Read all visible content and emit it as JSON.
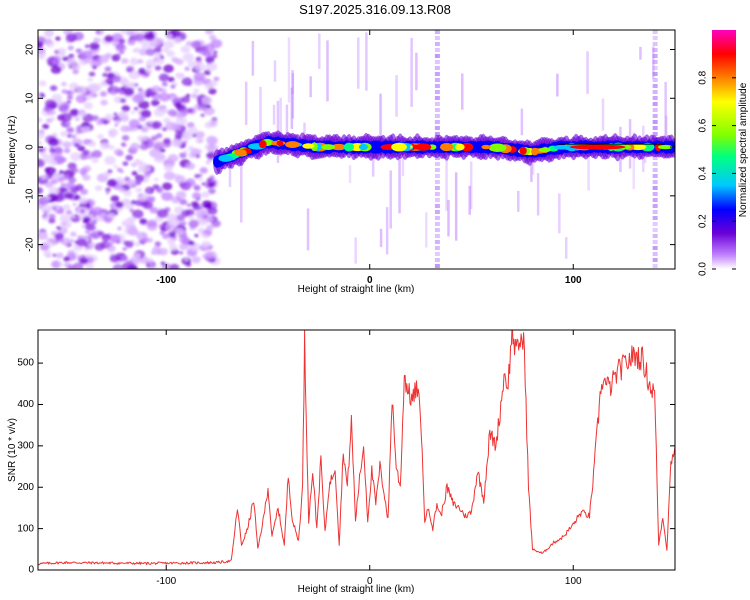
{
  "chart_data": [
    {
      "type": "heatmap",
      "title": "S197.2025.316.09.13.R08",
      "xlabel": "Height of straight line (km)",
      "ylabel": "Frequency (Hz)",
      "xlim": [
        -163,
        150
      ],
      "ylim": [
        -25,
        24
      ],
      "xticks": [
        -100,
        0,
        100
      ],
      "yticks": [
        -20,
        -10,
        0,
        10,
        20
      ],
      "noise_region_x": [
        -163,
        -75
      ],
      "signal_start_x": -75,
      "ridge_frequency_hz": [
        {
          "x": -75,
          "f": -3
        },
        {
          "x": -50,
          "f": 1
        },
        {
          "x": -25,
          "f": 0
        },
        {
          "x": 0,
          "f": 0
        },
        {
          "x": 60,
          "f": 0
        },
        {
          "x": 80,
          "f": -1
        },
        {
          "x": 95,
          "f": 0
        },
        {
          "x": 150,
          "f": 0
        }
      ],
      "colorbar": {
        "label": "Normalized spectral amplitude",
        "range": [
          0.0,
          1.0
        ],
        "ticks": [
          0.0,
          0.2,
          0.4,
          0.6,
          0.8
        ],
        "tick_labels": [
          "0.0",
          "0.2",
          "0.4",
          "0.6",
          "0.8"
        ],
        "colormap": [
          "#ffffff",
          "#c080ff",
          "#6a00d8",
          "#0000ff",
          "#00c8ff",
          "#00ff80",
          "#80ff00",
          "#ffff00",
          "#ff8000",
          "#ff0000",
          "#ff00c0"
        ]
      }
    },
    {
      "type": "line",
      "title": "",
      "xlabel": "Height of straight line (km)",
      "ylabel": "SNR (10 * v/v)",
      "xlim": [
        -163,
        150
      ],
      "ylim": [
        0,
        580
      ],
      "xticks": [
        -100,
        0,
        100
      ],
      "yticks": [
        0,
        100,
        200,
        300,
        400,
        500
      ],
      "line_color": "#ee3333",
      "series": [
        {
          "name": "SNR",
          "points": [
            [
              -163,
              15
            ],
            [
              -150,
              18
            ],
            [
              -130,
              17
            ],
            [
              -110,
              16
            ],
            [
              -90,
              17
            ],
            [
              -75,
              18
            ],
            [
              -68,
              22
            ],
            [
              -65,
              150
            ],
            [
              -63,
              60
            ],
            [
              -60,
              100
            ],
            [
              -57,
              170
            ],
            [
              -55,
              50
            ],
            [
              -52,
              130
            ],
            [
              -50,
              200
            ],
            [
              -48,
              80
            ],
            [
              -45,
              150
            ],
            [
              -42,
              60
            ],
            [
              -40,
              230
            ],
            [
              -38,
              120
            ],
            [
              -35,
              70
            ],
            [
              -33,
              200
            ],
            [
              -32,
              550
            ],
            [
              -30,
              120
            ],
            [
              -28,
              240
            ],
            [
              -26,
              100
            ],
            [
              -24,
              270
            ],
            [
              -22,
              90
            ],
            [
              -20,
              200
            ],
            [
              -17,
              250
            ],
            [
              -15,
              60
            ],
            [
              -13,
              290
            ],
            [
              -11,
              200
            ],
            [
              -9,
              360
            ],
            [
              -7,
              120
            ],
            [
              -5,
              220
            ],
            [
              -3,
              300
            ],
            [
              -1,
              120
            ],
            [
              1,
              240
            ],
            [
              3,
              160
            ],
            [
              5,
              250
            ],
            [
              7,
              190
            ],
            [
              9,
              120
            ],
            [
              11,
              420
            ],
            [
              13,
              250
            ],
            [
              15,
              200
            ],
            [
              17,
              470
            ],
            [
              19,
              430
            ],
            [
              21,
              410
            ],
            [
              23,
              440
            ],
            [
              25,
              380
            ],
            [
              27,
              120
            ],
            [
              29,
              150
            ],
            [
              31,
              100
            ],
            [
              33,
              160
            ],
            [
              35,
              130
            ],
            [
              38,
              200
            ],
            [
              41,
              160
            ],
            [
              44,
              150
            ],
            [
              47,
              130
            ],
            [
              50,
              140
            ],
            [
              53,
              240
            ],
            [
              56,
              170
            ],
            [
              59,
              330
            ],
            [
              62,
              300
            ],
            [
              64,
              380
            ],
            [
              66,
              470
            ],
            [
              68,
              450
            ],
            [
              70,
              580
            ],
            [
              72,
              520
            ],
            [
              74,
              560
            ],
            [
              76,
              540
            ],
            [
              78,
              200
            ],
            [
              80,
              50
            ],
            [
              85,
              40
            ],
            [
              90,
              65
            ],
            [
              95,
              80
            ],
            [
              100,
              110
            ],
            [
              104,
              140
            ],
            [
              108,
              130
            ],
            [
              110,
              230
            ],
            [
              112,
              350
            ],
            [
              114,
              460
            ],
            [
              118,
              440
            ],
            [
              122,
              480
            ],
            [
              126,
              500
            ],
            [
              130,
              520
            ],
            [
              134,
              510
            ],
            [
              138,
              440
            ],
            [
              140,
              430
            ],
            [
              142,
              60
            ],
            [
              144,
              130
            ],
            [
              146,
              50
            ],
            [
              148,
              260
            ],
            [
              150,
              300
            ]
          ]
        }
      ]
    }
  ]
}
